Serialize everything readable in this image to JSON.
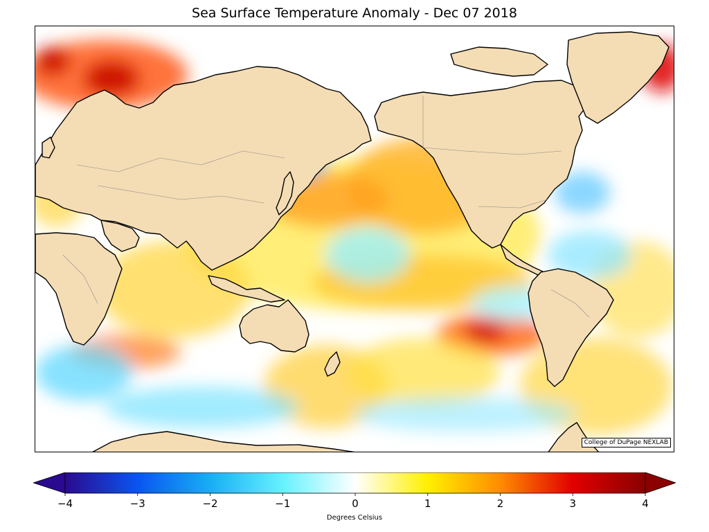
{
  "title": "Sea Surface Temperature Anomaly - Dec 07 2018",
  "credit": "College of DuPage NEXLAB",
  "colorbar": {
    "label": "Degrees Celsius",
    "min": -4,
    "max": 4,
    "ticks": [
      {
        "value": -4,
        "label": "−4"
      },
      {
        "value": -3,
        "label": "−3"
      },
      {
        "value": -2,
        "label": "−2"
      },
      {
        "value": -1,
        "label": "−1"
      },
      {
        "value": 0,
        "label": "0"
      },
      {
        "value": 1,
        "label": "1"
      },
      {
        "value": 2,
        "label": "2"
      },
      {
        "value": 3,
        "label": "3"
      },
      {
        "value": 4,
        "label": "4"
      }
    ],
    "stops": [
      {
        "value": -4,
        "color": "#2a0a8e"
      },
      {
        "value": -3,
        "color": "#0a55f0"
      },
      {
        "value": -2,
        "color": "#18aef5"
      },
      {
        "value": -1,
        "color": "#66f2ff"
      },
      {
        "value": 0,
        "color": "#ffffff"
      },
      {
        "value": 1,
        "color": "#fff000"
      },
      {
        "value": 2,
        "color": "#ff8c00"
      },
      {
        "value": 3,
        "color": "#e00000"
      },
      {
        "value": 4,
        "color": "#8b0000"
      }
    ]
  },
  "colors": {
    "land": "#f4dcb4",
    "coastline": "#000000",
    "border": "#8a8a8a"
  }
}
